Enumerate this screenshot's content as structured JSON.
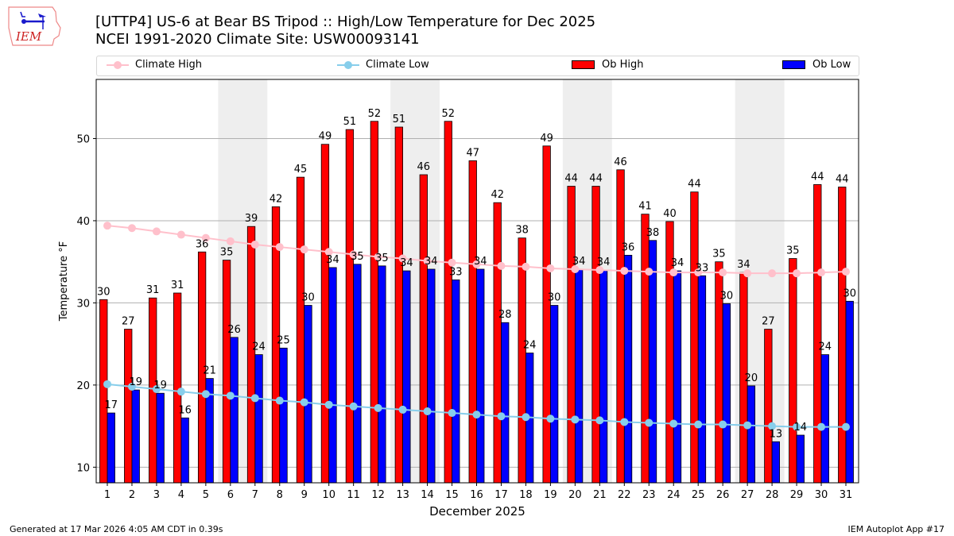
{
  "header": {
    "title_line1": "[UTTP4] US-6 at Bear BS Tripod  :: High/Low Temperature for Dec 2025",
    "title_line2": "NCEI 1991-2020 Climate Site: USW00093141",
    "logo_text": "IEM"
  },
  "legend": [
    {
      "label": "Climate High",
      "kind": "line",
      "color": "#ffc0cb"
    },
    {
      "label": "Climate Low",
      "kind": "line",
      "color": "#87ceeb"
    },
    {
      "label": "Ob High",
      "kind": "bar",
      "color": "#ff0000"
    },
    {
      "label": "Ob Low",
      "kind": "bar",
      "color": "#0000ff"
    }
  ],
  "footer": {
    "left": "Generated at 17 Mar 2026 4:05 AM CDT in 0.39s",
    "right": "IEM Autoplot App #17"
  },
  "chart_data": {
    "type": "bar",
    "title": "[UTTP4] US-6 at Bear BS Tripod  :: High/Low Temperature for Dec 2025",
    "subtitle": "NCEI 1991-2020 Climate Site: USW00093141",
    "xlabel": "December 2025",
    "ylabel": "Temperature °F",
    "ylim": [
      8.1,
      57.2
    ],
    "yticks": [
      10,
      20,
      30,
      40,
      50
    ],
    "grid": "y",
    "legend_position": "top",
    "categories": [
      "1",
      "2",
      "3",
      "4",
      "5",
      "6",
      "7",
      "8",
      "9",
      "10",
      "11",
      "12",
      "13",
      "14",
      "15",
      "16",
      "17",
      "18",
      "19",
      "20",
      "21",
      "22",
      "23",
      "24",
      "25",
      "26",
      "27",
      "28",
      "29",
      "30",
      "31"
    ],
    "weekend_shading": [
      [
        6,
        7
      ],
      [
        13,
        14
      ],
      [
        20,
        21
      ],
      [
        27,
        28
      ]
    ],
    "series": [
      {
        "name": "Ob High",
        "type": "bar",
        "color": "#ff0000",
        "values": [
          30.4,
          26.8,
          30.6,
          31.2,
          36.2,
          35.2,
          39.3,
          41.7,
          45.3,
          49.3,
          51.1,
          52.1,
          51.4,
          45.6,
          52.1,
          47.3,
          42.2,
          37.9,
          49.1,
          44.2,
          44.2,
          46.2,
          40.8,
          39.9,
          43.5,
          35.0,
          33.7,
          26.8,
          35.4,
          44.4,
          44.1
        ],
        "labels": [
          30,
          27,
          31,
          31,
          36,
          35,
          39,
          42,
          45,
          49,
          51,
          52,
          51,
          46,
          52,
          47,
          42,
          38,
          49,
          44,
          44,
          46,
          41,
          40,
          44,
          35,
          34,
          27,
          35,
          44,
          44
        ]
      },
      {
        "name": "Ob Low",
        "type": "bar",
        "color": "#0000ff",
        "values": [
          16.6,
          19.4,
          19.0,
          16.0,
          20.8,
          25.8,
          23.7,
          24.5,
          29.7,
          34.3,
          34.7,
          34.5,
          33.9,
          34.1,
          32.8,
          34.1,
          27.6,
          23.9,
          29.7,
          34.1,
          34.0,
          35.8,
          37.6,
          33.9,
          33.3,
          29.9,
          19.9,
          13.1,
          13.9,
          23.7,
          30.2
        ],
        "labels": [
          17,
          19,
          19,
          16,
          21,
          26,
          24,
          25,
          30,
          34,
          35,
          35,
          34,
          34,
          33,
          34,
          28,
          24,
          30,
          34,
          34,
          36,
          38,
          34,
          33,
          30,
          20,
          13,
          14,
          24,
          30
        ]
      },
      {
        "name": "Climate High",
        "type": "line",
        "color": "#ffc0cb",
        "values": [
          39.4,
          39.1,
          38.7,
          38.3,
          37.9,
          37.5,
          37.1,
          36.8,
          36.5,
          36.2,
          35.9,
          35.6,
          35.4,
          35.1,
          34.9,
          34.7,
          34.5,
          34.4,
          34.2,
          34.1,
          34.0,
          33.9,
          33.8,
          33.7,
          33.7,
          33.7,
          33.6,
          33.6,
          33.6,
          33.7,
          33.8
        ]
      },
      {
        "name": "Climate Low",
        "type": "line",
        "color": "#87ceeb",
        "values": [
          20.1,
          19.8,
          19.5,
          19.2,
          18.9,
          18.7,
          18.4,
          18.1,
          17.9,
          17.6,
          17.4,
          17.2,
          17.0,
          16.8,
          16.6,
          16.4,
          16.2,
          16.1,
          15.9,
          15.8,
          15.7,
          15.5,
          15.4,
          15.3,
          15.2,
          15.2,
          15.1,
          15.0,
          14.9,
          14.9,
          14.9
        ]
      }
    ]
  }
}
